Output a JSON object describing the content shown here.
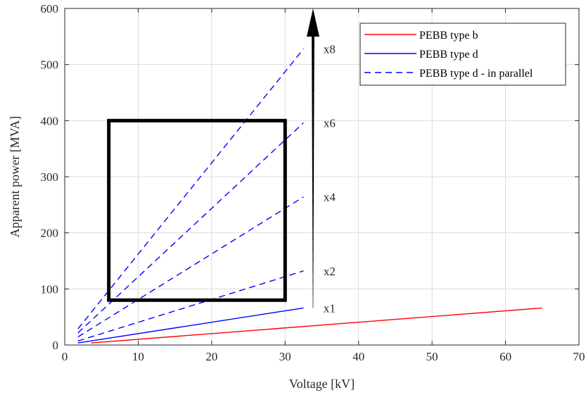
{
  "chart_data": {
    "type": "line",
    "xlabel": "Voltage [kV]",
    "ylabel": "Apparent power [MVA]",
    "xlim": [
      0,
      70
    ],
    "ylim": [
      0,
      600
    ],
    "xticks": [
      0,
      10,
      20,
      30,
      40,
      50,
      60,
      70
    ],
    "yticks": [
      0,
      100,
      200,
      300,
      400,
      500,
      600
    ],
    "grid": true,
    "legend_position": "top-right",
    "series": [
      {
        "name": "PEBB type b",
        "color": "#ff0000",
        "style": "solid",
        "x": [
          3.6,
          65
        ],
        "y": [
          3.6,
          66
        ]
      },
      {
        "name": "PEBB type d",
        "color": "#0000ff",
        "style": "solid",
        "x": [
          1.8,
          32.5
        ],
        "y": [
          3.6,
          66
        ]
      },
      {
        "name": "PEBB type d - in parallel",
        "color": "#0000ff",
        "style": "dashed",
        "x": [
          1.8,
          32.5
        ],
        "y": [
          7.2,
          132
        ]
      },
      {
        "color": "#0000ff",
        "style": "dashed",
        "x": [
          1.8,
          32.5
        ],
        "y": [
          14.4,
          264
        ]
      },
      {
        "color": "#0000ff",
        "style": "dashed",
        "x": [
          1.8,
          32.5
        ],
        "y": [
          21.6,
          396
        ]
      },
      {
        "color": "#0000ff",
        "style": "dashed",
        "x": [
          1.8,
          32.5
        ],
        "y": [
          28.8,
          528
        ]
      }
    ],
    "annotations": [
      {
        "text": "x1",
        "x": 33.5,
        "y": 66
      },
      {
        "text": "x2",
        "x": 33.5,
        "y": 132
      },
      {
        "text": "x4",
        "x": 33.5,
        "y": 264
      },
      {
        "text": "x6",
        "x": 33.5,
        "y": 396
      },
      {
        "text": "x8",
        "x": 33.5,
        "y": 528
      }
    ],
    "arrow": {
      "x": 33.8,
      "y_from": 66,
      "y_to": 600
    },
    "rectangle": {
      "x": [
        6,
        30
      ],
      "y": [
        80,
        400
      ]
    }
  }
}
